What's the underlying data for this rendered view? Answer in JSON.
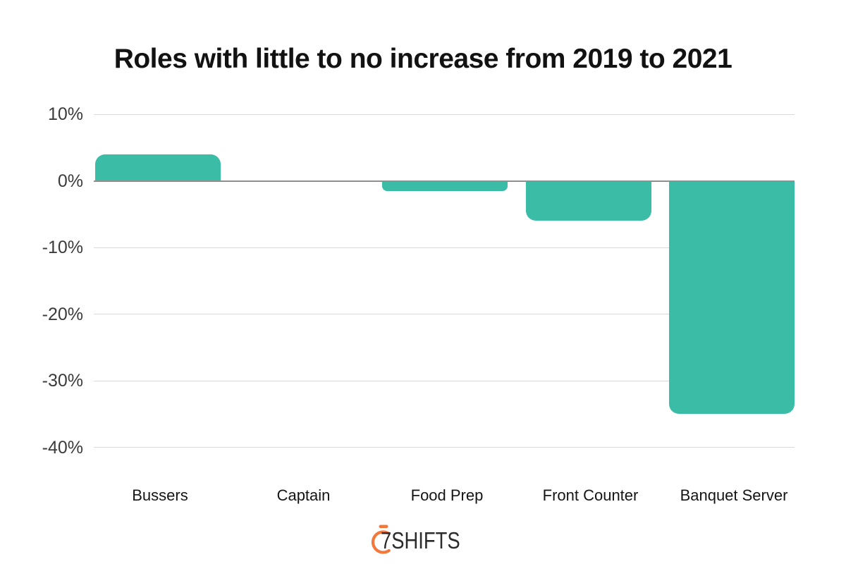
{
  "title": "Roles with little to no increase from 2019 to 2021",
  "chart_data": {
    "type": "bar",
    "title": "Roles with little to no increase from 2019 to 2021",
    "categories": [
      "Bussers",
      "Captain",
      "Food Prep",
      "Front Counter",
      "Banquet Server"
    ],
    "values": [
      4,
      0,
      -1.5,
      -6,
      -35
    ],
    "xlabel": "",
    "ylabel": "",
    "ylim": [
      -40,
      10
    ],
    "yticks": [
      10,
      0,
      -10,
      -20,
      -30,
      -40
    ],
    "ytick_labels": [
      "10%",
      "0%",
      "-10%",
      "-20%",
      "-30%",
      "-40%"
    ],
    "bar_color": "#3BBCA6",
    "grid": true,
    "gridline_color": "#d9d9d9",
    "zero_line_color": "#8f8f8f",
    "legend": false
  },
  "footer": {
    "logo_text": "7SHIFTS",
    "logo_icon": "stopwatch-icon",
    "logo_accent_color": "#F4783C",
    "logo_text_color": "#2b2b2b"
  }
}
